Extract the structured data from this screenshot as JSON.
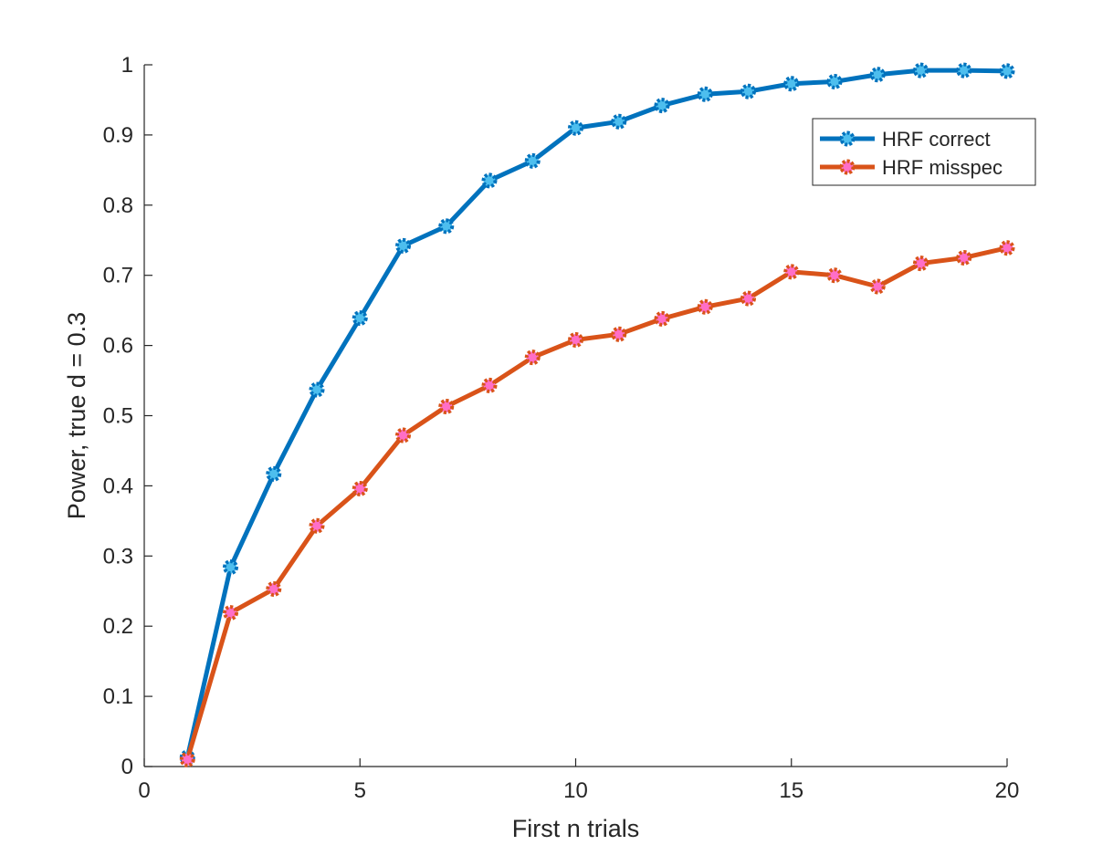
{
  "chart_data": {
    "type": "line",
    "xlabel": "First n trials",
    "ylabel": "Power, true d = 0.3",
    "xlim": [
      0,
      20
    ],
    "ylim": [
      0,
      1
    ],
    "xticks": [
      "0",
      "5",
      "10",
      "15",
      "20"
    ],
    "yticks": [
      "0",
      "0.1",
      "0.2",
      "0.3",
      "0.4",
      "0.5",
      "0.6",
      "0.7",
      "0.8",
      "0.9",
      "1"
    ],
    "grid": false,
    "legend_position": "top-right",
    "x": [
      1,
      2,
      3,
      4,
      5,
      6,
      7,
      8,
      9,
      10,
      11,
      12,
      13,
      14,
      15,
      16,
      17,
      18,
      19,
      20
    ],
    "series": [
      {
        "name": "HRF correct",
        "color": "#0072BD",
        "marker_color": "#4DBEEE",
        "values": [
          0.013,
          0.284,
          0.417,
          0.537,
          0.639,
          0.742,
          0.77,
          0.835,
          0.863,
          0.91,
          0.919,
          0.942,
          0.958,
          0.962,
          0.973,
          0.976,
          0.986,
          0.992,
          0.992,
          0.991
        ]
      },
      {
        "name": "HRF misspec",
        "color": "#D95319",
        "marker_color": "#FF6EC7",
        "values": [
          0.01,
          0.219,
          0.253,
          0.343,
          0.396,
          0.472,
          0.513,
          0.543,
          0.583,
          0.608,
          0.616,
          0.638,
          0.655,
          0.667,
          0.705,
          0.7,
          0.684,
          0.717,
          0.725,
          0.739
        ]
      }
    ]
  }
}
